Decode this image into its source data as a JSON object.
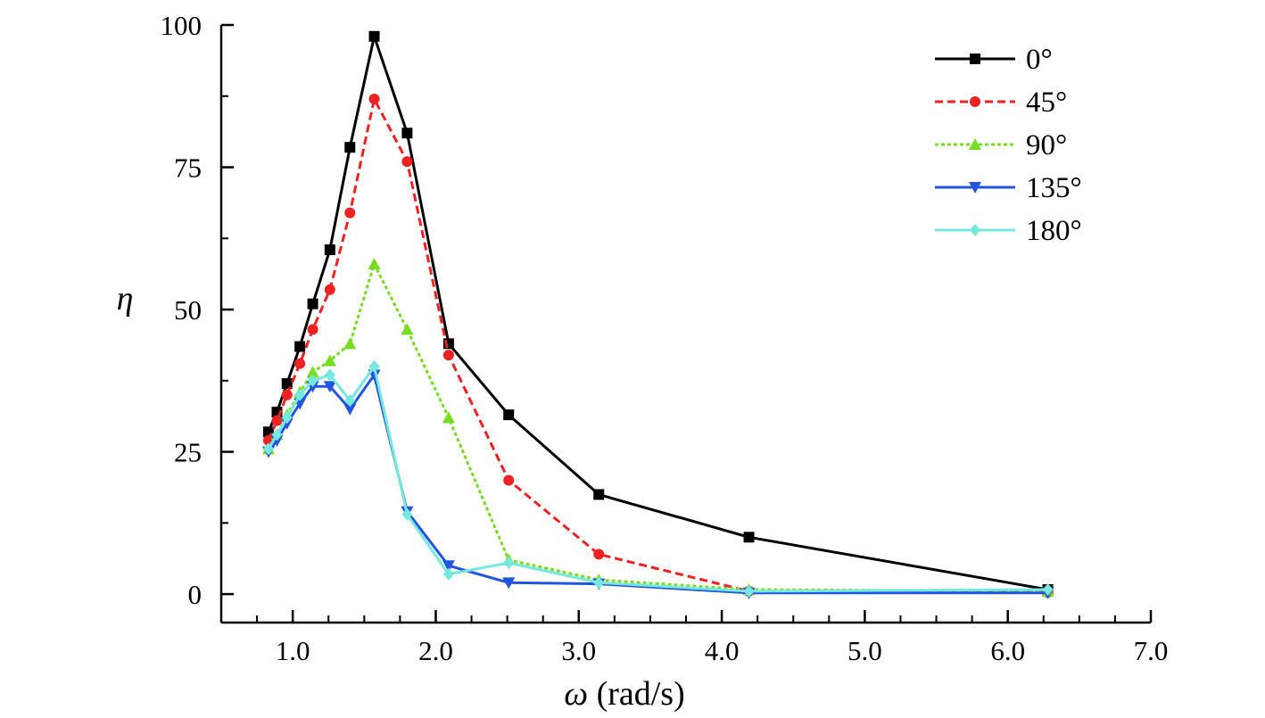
{
  "chart_data": {
    "type": "line",
    "title": "",
    "xlabel": {
      "symbol": "ω",
      "unit": " (rad/s)"
    },
    "ylabel": "η",
    "xlim": [
      0.5,
      7.0
    ],
    "ylim": [
      -5,
      100
    ],
    "x_ticks": [
      1.0,
      2.0,
      3.0,
      4.0,
      5.0,
      6.0,
      7.0
    ],
    "x_tick_labels": [
      "1.0",
      "2.0",
      "3.0",
      "4.0",
      "5.0",
      "6.0",
      "7.0"
    ],
    "y_ticks": [
      0,
      25,
      50,
      75,
      100
    ],
    "y_tick_labels": [
      "0",
      "25",
      "50",
      "75",
      "100"
    ],
    "grid": false,
    "legend_position": "top-right",
    "series": [
      {
        "name": "0°",
        "color": "#000000",
        "dash": "solid",
        "marker": "square",
        "x": [
          0.83,
          0.89,
          0.96,
          1.05,
          1.14,
          1.26,
          1.4,
          1.57,
          1.8,
          2.09,
          2.51,
          3.14,
          4.19,
          6.28
        ],
        "y": [
          28.5,
          32.0,
          37.0,
          43.5,
          51.0,
          60.5,
          78.5,
          98.0,
          81.0,
          44.0,
          31.5,
          17.5,
          10.0,
          0.8
        ]
      },
      {
        "name": "45°",
        "color": "#ee2222",
        "dash": "dashed",
        "marker": "circle",
        "x": [
          0.83,
          0.89,
          0.96,
          1.05,
          1.14,
          1.26,
          1.4,
          1.57,
          1.8,
          2.09,
          2.51,
          3.14,
          4.19,
          6.28
        ],
        "y": [
          27.0,
          30.5,
          35.0,
          40.5,
          46.5,
          53.5,
          67.0,
          87.0,
          76.0,
          42.0,
          20.0,
          7.0,
          0.5,
          0.3
        ]
      },
      {
        "name": "90°",
        "color": "#77dd22",
        "dash": "dotted",
        "marker": "triangle-up",
        "x": [
          0.83,
          0.89,
          0.96,
          1.05,
          1.14,
          1.26,
          1.4,
          1.57,
          1.8,
          2.09,
          2.51,
          3.14,
          4.19,
          6.28
        ],
        "y": [
          25.5,
          28.0,
          31.5,
          35.5,
          39.0,
          41.0,
          44.0,
          58.0,
          46.5,
          31.0,
          6.0,
          2.5,
          0.8,
          0.5
        ]
      },
      {
        "name": "135°",
        "color": "#2255dd",
        "dash": "solid",
        "marker": "triangle-down",
        "x": [
          0.83,
          0.89,
          0.96,
          1.05,
          1.14,
          1.26,
          1.4,
          1.57,
          1.8,
          2.09,
          2.51,
          3.14,
          4.19,
          6.28
        ],
        "y": [
          25.0,
          27.0,
          30.0,
          33.5,
          36.5,
          36.5,
          32.5,
          38.5,
          14.5,
          5.0,
          2.0,
          1.8,
          0.2,
          0.2
        ]
      },
      {
        "name": "180°",
        "color": "#77e8dd",
        "dash": "solid",
        "marker": "diamond",
        "x": [
          0.83,
          0.89,
          0.96,
          1.05,
          1.14,
          1.26,
          1.4,
          1.57,
          1.8,
          2.09,
          2.51,
          3.14,
          4.19,
          6.28
        ],
        "y": [
          25.5,
          28.0,
          31.0,
          35.0,
          37.5,
          38.5,
          34.0,
          40.0,
          14.0,
          3.5,
          5.5,
          2.0,
          0.5,
          0.8
        ]
      }
    ]
  }
}
